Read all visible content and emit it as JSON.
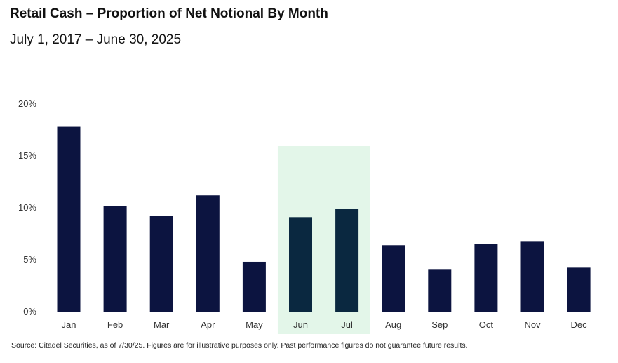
{
  "header": {
    "title": "Retail Cash – Proportion of Net Notional By Month",
    "subtitle": "July 1, 2017 – June 30, 2025"
  },
  "footer": {
    "source": "Source: Citadel Securities, as of 7/30/25. Figures are for illustrative purposes only. Past performance figures do not guarantee future results."
  },
  "colors": {
    "bar": "#0c1440",
    "highlight_bar": "#0a2840",
    "highlight_band": "#e3f6e9",
    "axis": "#bdbdbd"
  },
  "chart_data": {
    "type": "bar",
    "title": "Retail Cash – Proportion of Net Notional By Month",
    "subtitle": "July 1, 2017 – June 30, 2025",
    "xlabel": "",
    "ylabel": "",
    "categories": [
      "Jan",
      "Feb",
      "Mar",
      "Apr",
      "May",
      "Jun",
      "Jul",
      "Aug",
      "Sep",
      "Oct",
      "Nov",
      "Dec"
    ],
    "values": [
      17.8,
      10.2,
      9.2,
      11.2,
      4.8,
      9.1,
      9.9,
      6.4,
      4.1,
      6.5,
      6.8,
      4.3
    ],
    "unit": "%",
    "ylim": [
      0,
      20
    ],
    "yticks": [
      0,
      5,
      10,
      15,
      20
    ],
    "ytick_labels": [
      "0%",
      "5%",
      "10%",
      "15%",
      "20%"
    ],
    "highlighted_categories": [
      "Jun",
      "Jul"
    ],
    "grid": false,
    "legend": "none"
  }
}
